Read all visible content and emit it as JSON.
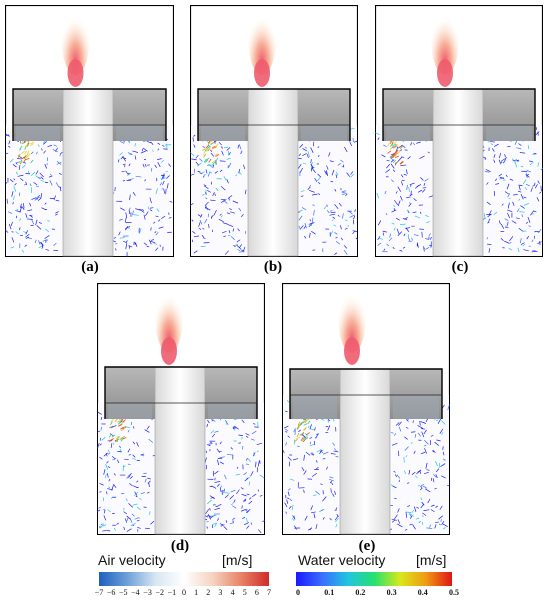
{
  "panels": [
    {
      "label": "(a)"
    },
    {
      "label": "(b)"
    },
    {
      "label": "(c)"
    },
    {
      "label": "(d)"
    },
    {
      "label": "(e)"
    }
  ],
  "legend_air": {
    "title": "Air velocity",
    "unit": "[m/s]",
    "ticks": [
      "−7",
      "−6",
      "−5",
      "−4",
      "−3",
      "−2",
      "−1",
      "0",
      "1",
      "2",
      "3",
      "4",
      "5",
      "6",
      "7"
    ],
    "colors": [
      "#1f5fbf",
      "#6da0d8",
      "#d8e6f3",
      "#ffffff",
      "#f5d3c3",
      "#e88466",
      "#cf2b2b"
    ]
  },
  "legend_water": {
    "title": "Water velocity",
    "unit": "[m/s]",
    "ticks": [
      "0",
      "0.1",
      "0.2",
      "0.3",
      "0.4",
      "0.5"
    ],
    "colors": [
      "#1a1aff",
      "#3a6dff",
      "#21c5e0",
      "#25e070",
      "#d8e81a",
      "#f09a14",
      "#e01515"
    ]
  }
}
